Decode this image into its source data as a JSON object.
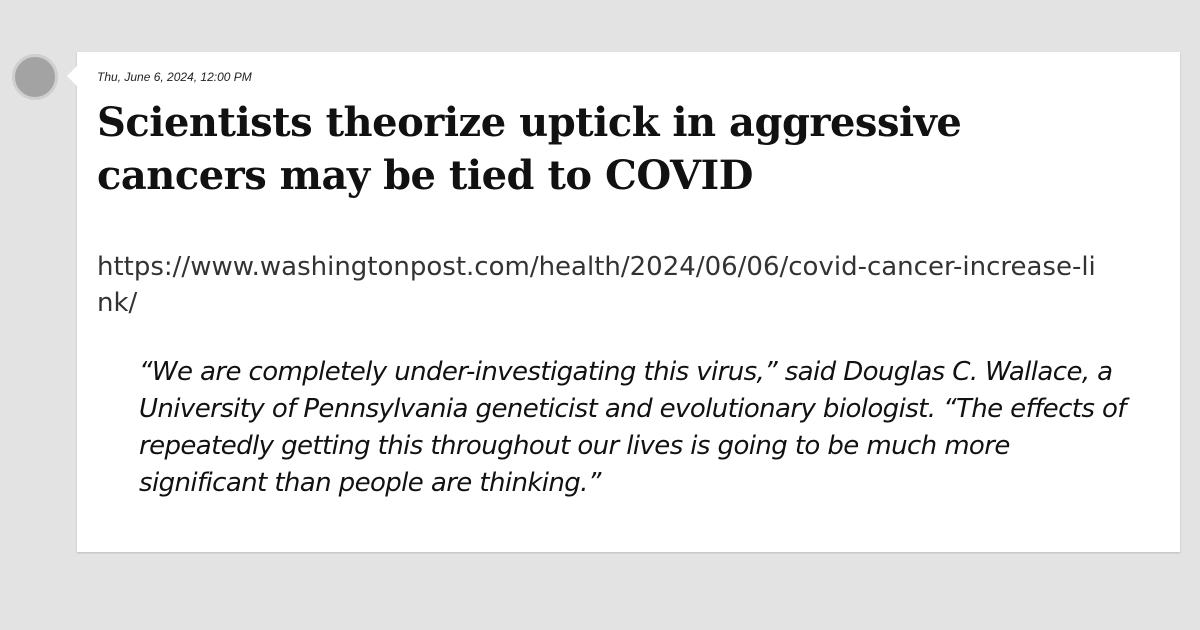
{
  "post": {
    "timestamp": "Thu, June 6, 2024, 12:00 PM",
    "headline": "Scientists theorize uptick in aggressive cancers may be tied to COVID",
    "url": "https://www.washingtonpost.com/health/2024/06/06/covid-cancer-increase-link/",
    "quote": "“We are completely under-investigating this virus,” said Douglas C. Wallace, a University of Pennsylvania geneticist and evolutionary biologist. “The effects of repeatedly getting this throughout our lives is going to be much more significant than people are thinking.”"
  },
  "colors": {
    "background": "#e3e3e3",
    "card": "#ffffff",
    "avatar": "#a3a3a3"
  }
}
